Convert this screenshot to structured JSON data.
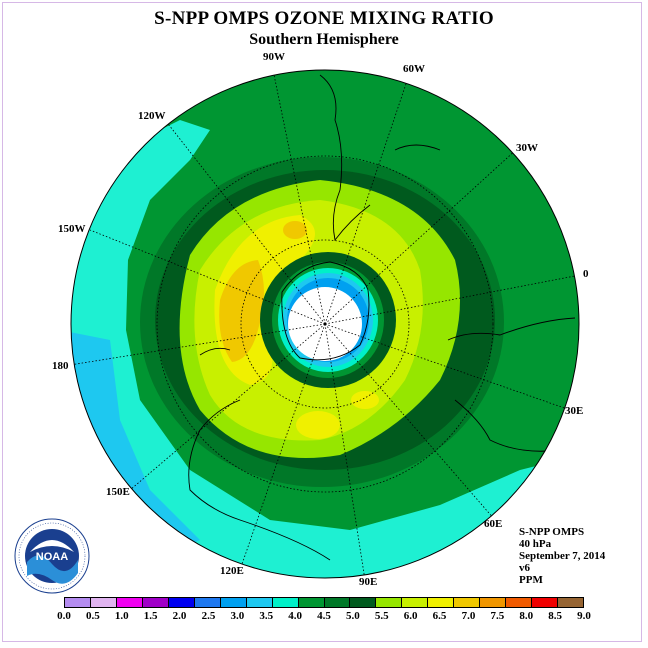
{
  "title": "S-NPP OMPS OZONE MIXING RATIO",
  "subtitle": "Southern Hemisphere",
  "longitude_labels": {
    "w90": "90W",
    "w60": "60W",
    "w30": "30W",
    "w120": "120W",
    "w150": "150W",
    "zero": "0",
    "d180": "180",
    "e30": "30E",
    "e150": "150E",
    "e60": "60E",
    "e120": "120E",
    "e90": "90E"
  },
  "info": {
    "instrument": "S-NPP OMPS",
    "level": "40 hPa",
    "date": "September 7, 2014",
    "version": "v6",
    "units": "PPM"
  },
  "logo_text": "NOAA",
  "colorbar": {
    "ticks": [
      "0.0",
      "0.5",
      "1.0",
      "1.5",
      "2.0",
      "2.5",
      "3.0",
      "3.5",
      "4.0",
      "4.5",
      "5.0",
      "5.5",
      "6.0",
      "6.5",
      "7.0",
      "7.5",
      "8.0",
      "8.5",
      "9.0"
    ],
    "colors": [
      "#b48cf0",
      "#e0b4f0",
      "#f000f0",
      "#a000c8",
      "#0000f0",
      "#1e78f0",
      "#00a0f0",
      "#1ec8f0",
      "#00f0c8",
      "#009632",
      "#007828",
      "#005a1e",
      "#96e600",
      "#c8f000",
      "#f0f000",
      "#f0c800",
      "#f09600",
      "#f05a00",
      "#f00000",
      "#966432"
    ]
  },
  "colors": {
    "ocean_land_outer": "#00966e",
    "cyan": "#1ef0d2",
    "frame": "#d6b8e6"
  }
}
